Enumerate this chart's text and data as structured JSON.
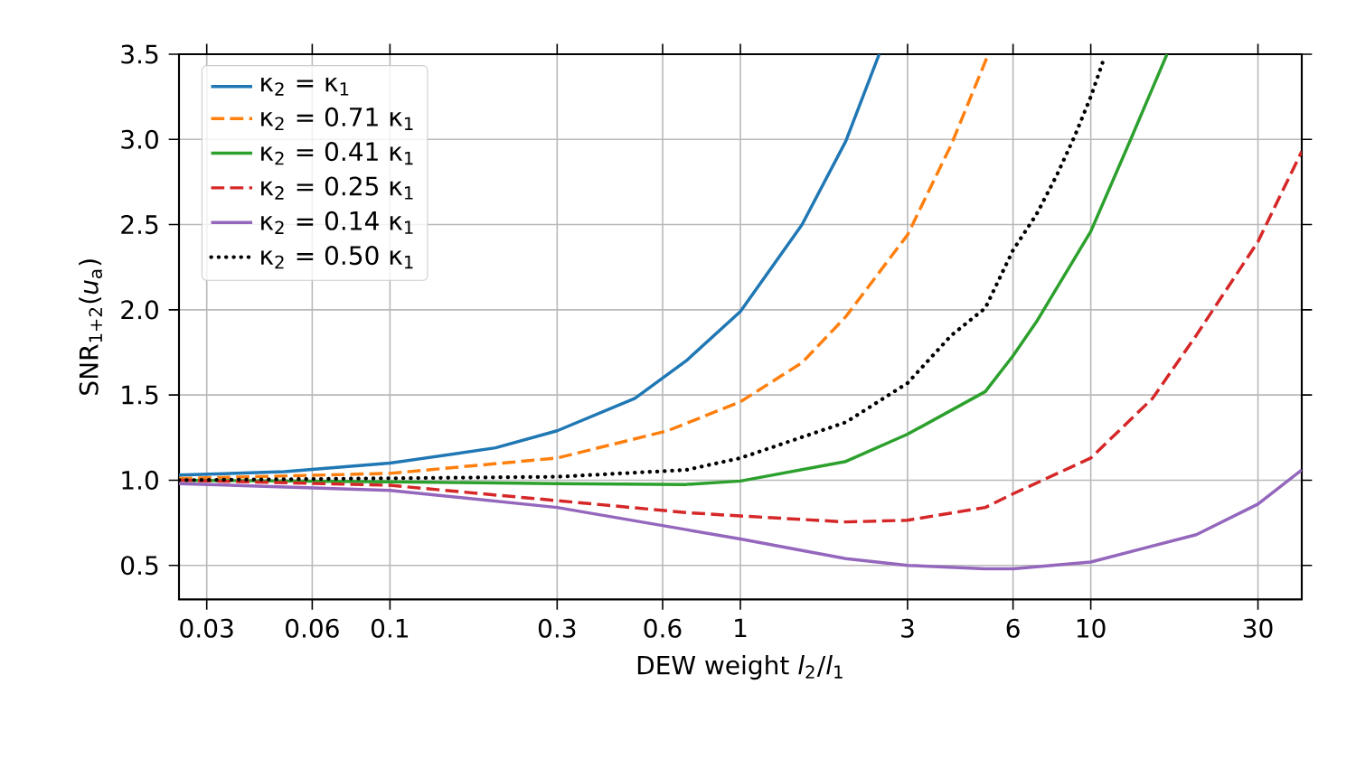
{
  "chart_data": {
    "type": "line",
    "xlabel": "DEW weight *l*$_{2}$/*l*$_{1}$",
    "ylabel": "SNR$_{1+2}$(*u*$_{a}$)",
    "log": "x",
    "grid": true,
    "legend": "top left",
    "xlim": [
      0.025,
      40
    ],
    "ylim": [
      0.3,
      3.5
    ],
    "xticks": [
      0.03,
      0.06,
      0.1,
      0.3,
      0.6,
      1,
      3,
      6,
      10,
      30
    ],
    "yticks": [
      0.5,
      {
        "value": 1,
        "label": "1.0"
      },
      1.5,
      {
        "value": 2,
        "label": "2.0"
      },
      2.5,
      {
        "value": 3,
        "label": "3.0"
      },
      3.5
    ],
    "series": [
      {
        "name": "κ$_{2}$ = κ$_{1}$",
        "color": "#1f77b4",
        "line_style": "solid",
        "x": [
          0.025,
          0.05,
          0.1,
          0.2,
          0.3,
          0.5,
          0.7,
          1,
          1.5,
          2,
          2.49
        ],
        "values": [
          1.03,
          1.05,
          1.1,
          1.19,
          1.29,
          1.48,
          1.7,
          1.99,
          2.5,
          2.99,
          3.5
        ]
      },
      {
        "name": "κ$_{2}$ = 0.71 κ$_{1}$",
        "color": "#ff7f0e",
        "line_style": "dashed",
        "x": [
          0.025,
          0.1,
          0.3,
          0.62,
          1,
          1.5,
          2,
          3,
          4,
          5.1
        ],
        "values": [
          1.01,
          1.04,
          1.13,
          1.29,
          1.46,
          1.69,
          1.96,
          2.44,
          2.97,
          3.5
        ]
      },
      {
        "name": "κ$_{2}$ = 0.41 κ$_{1}$",
        "color": "#2ca02c",
        "line_style": "solid",
        "x": [
          0.025,
          0.1,
          0.3,
          0.7,
          1,
          2,
          3,
          5,
          6,
          7,
          10,
          13,
          16.5
        ],
        "values": [
          1.0,
          0.99,
          0.98,
          0.975,
          0.995,
          1.11,
          1.27,
          1.52,
          1.73,
          1.93,
          2.46,
          3.0,
          3.5
        ]
      },
      {
        "name": "κ$_{2}$ = 0.25 κ$_{1}$",
        "color": "#d62728",
        "line_style": "dashed",
        "x": [
          0.025,
          0.1,
          0.3,
          0.7,
          1,
          2,
          3,
          5,
          6,
          10,
          15,
          20,
          30,
          40
        ],
        "values": [
          1.0,
          0.97,
          0.88,
          0.81,
          0.79,
          0.755,
          0.765,
          0.84,
          0.92,
          1.13,
          1.48,
          1.85,
          2.4,
          2.93
        ]
      },
      {
        "name": "κ$_{2}$ = 0.14 κ$_{1}$",
        "color": "#9467bd",
        "line_style": "solid",
        "x": [
          0.025,
          0.1,
          0.3,
          0.7,
          1,
          2,
          3,
          5,
          6,
          10,
          20,
          30,
          40
        ],
        "values": [
          0.98,
          0.94,
          0.84,
          0.71,
          0.655,
          0.54,
          0.5,
          0.48,
          0.48,
          0.52,
          0.68,
          0.86,
          1.06
        ]
      },
      {
        "name": "κ$_{2}$ = 0.50 κ$_{1}$",
        "color": "#000000",
        "line_style": "dotted",
        "x": [
          0.025,
          0.3,
          0.7,
          1,
          2,
          3,
          4,
          5,
          6,
          7,
          8,
          9,
          10,
          10.8
        ],
        "values": [
          1.0,
          1.02,
          1.06,
          1.13,
          1.34,
          1.57,
          1.85,
          2.01,
          2.35,
          2.56,
          2.79,
          3.02,
          3.25,
          3.45
        ]
      }
    ]
  }
}
